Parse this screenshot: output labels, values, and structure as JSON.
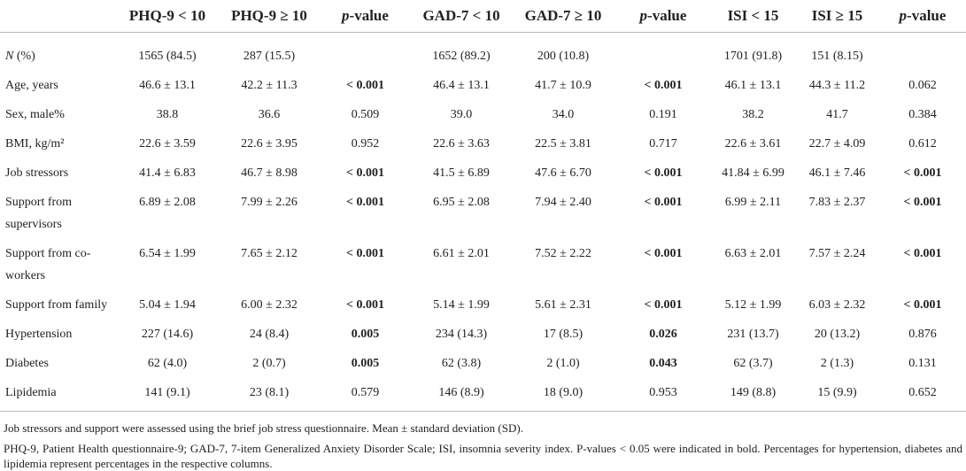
{
  "table": {
    "header": [
      "",
      "PHQ-9 < 10",
      "PHQ-9 ≥ 10",
      "p-value",
      "GAD-7 < 10",
      "GAD-7 ≥ 10",
      "p-value",
      "ISI < 15",
      "ISI ≥ 15",
      "p-value"
    ],
    "rows": [
      [
        "N (%)",
        "1565 (84.5)",
        "287 (15.5)",
        "",
        "1652 (89.2)",
        "200 (10.8)",
        "",
        "1701 (91.8)",
        "151 (8.15)",
        ""
      ],
      [
        "Age, years",
        "46.6 ± 13.1",
        "42.2 ± 11.3",
        {
          "text": "< 0.001",
          "bold": true
        },
        "46.4 ± 13.1",
        "41.7 ± 10.9",
        {
          "text": "< 0.001",
          "bold": true
        },
        "46.1 ± 13.1",
        "44.3 ± 11.2",
        "0.062"
      ],
      [
        "Sex, male%",
        "38.8",
        "36.6",
        "0.509",
        "39.0",
        "34.0",
        "0.191",
        "38.2",
        "41.7",
        "0.384"
      ],
      [
        "BMI, kg/m²",
        "22.6 ± 3.59",
        "22.6 ± 3.95",
        "0.952",
        "22.6 ± 3.63",
        "22.5 ± 3.81",
        "0.717",
        "22.6 ± 3.61",
        "22.7 ± 4.09",
        "0.612"
      ],
      [
        "Job stressors",
        "41.4 ± 6.83",
        "46.7 ± 8.98",
        {
          "text": "< 0.001",
          "bold": true
        },
        "41.5 ± 6.89",
        "47.6 ± 6.70",
        {
          "text": "< 0.001",
          "bold": true
        },
        "41.84 ± 6.99",
        "46.1 ± 7.46",
        {
          "text": "< 0.001",
          "bold": true
        }
      ],
      [
        "Support from supervisors",
        "6.89 ± 2.08",
        "7.99 ± 2.26",
        {
          "text": "< 0.001",
          "bold": true
        },
        "6.95 ± 2.08",
        "7.94 ± 2.40",
        {
          "text": "< 0.001",
          "bold": true
        },
        "6.99 ± 2.11",
        "7.83 ± 2.37",
        {
          "text": "< 0.001",
          "bold": true
        }
      ],
      [
        "Support from co-workers",
        "6.54 ± 1.99",
        "7.65 ± 2.12",
        {
          "text": "< 0.001",
          "bold": true
        },
        "6.61 ± 2.01",
        "7.52 ± 2.22",
        {
          "text": "< 0.001",
          "bold": true
        },
        "6.63 ± 2.01",
        "7.57 ± 2.24",
        {
          "text": "< 0.001",
          "bold": true
        }
      ],
      [
        "Support from family",
        "5.04 ± 1.94",
        "6.00 ± 2.32",
        {
          "text": "< 0.001",
          "bold": true
        },
        "5.14 ± 1.99",
        "5.61 ± 2.31",
        {
          "text": "< 0.001",
          "bold": true
        },
        "5.12 ± 1.99",
        "6.03 ± 2.32",
        {
          "text": "< 0.001",
          "bold": true
        }
      ],
      [
        "Hypertension",
        "227 (14.6)",
        "24 (8.4)",
        {
          "text": "0.005",
          "bold": true
        },
        "234 (14.3)",
        "17 (8.5)",
        {
          "text": "0.026",
          "bold": true
        },
        "231 (13.7)",
        "20 (13.2)",
        "0.876"
      ],
      [
        "Diabetes",
        "62 (4.0)",
        "2 (0.7)",
        {
          "text": "0.005",
          "bold": true
        },
        "62 (3.8)",
        "2 (1.0)",
        {
          "text": "0.043",
          "bold": true
        },
        "62 (3.7)",
        "2 (1.3)",
        "0.131"
      ],
      [
        "Lipidemia",
        "141 (9.1)",
        "23 (8.1)",
        "0.579",
        "146 (8.9)",
        "18 (9.0)",
        "0.953",
        "149 (8.8)",
        "15 (9.9)",
        "0.652"
      ]
    ]
  },
  "footnotes": [
    "Job stressors and support were assessed using the brief job stress questionnaire. Mean ± standard deviation (SD).",
    "PHQ-9, Patient Health questionnaire-9; GAD-7, 7-item Generalized Anxiety Disorder Scale; ISI, insomnia severity index. P-values < 0.05 were indicated in bold. Percentages for hypertension, diabetes and lipidemia represent percentages in the respective columns."
  ]
}
